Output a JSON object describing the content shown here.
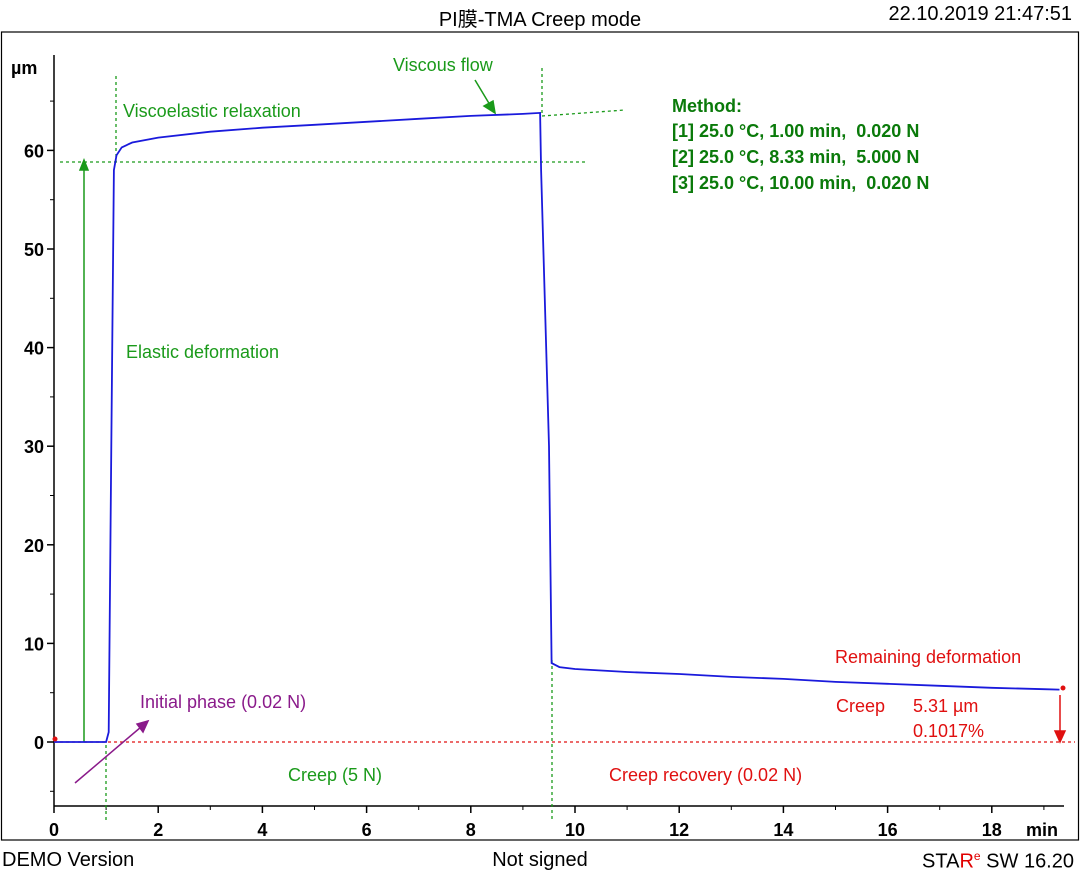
{
  "header": {
    "title": "PI膜-TMA Creep mode",
    "timestamp": "22.10.2019 21:47:51"
  },
  "footer": {
    "demo": "DEMO Version",
    "signed": "Not signed",
    "software_prefix": "STAR",
    "software_sup": "e",
    "software_suffix": " SW 16.20"
  },
  "colors": {
    "curve": "#1a1adc",
    "green": "#1a9a1a",
    "red": "#e01010",
    "purple": "#8a1a8a"
  },
  "chart_data": {
    "type": "line",
    "xlabel": "min",
    "ylabel": "µm",
    "xlim": [
      0,
      19.3
    ],
    "ylim": [
      -6,
      70
    ],
    "x_ticks": [
      0,
      2,
      4,
      6,
      8,
      10,
      12,
      14,
      16,
      18
    ],
    "y_ticks": [
      0,
      10,
      20,
      30,
      40,
      50,
      60
    ],
    "grid": false,
    "series": [
      {
        "x": [
          0,
          0.5,
          1.0,
          1.05,
          1.1,
          1.15,
          1.2,
          1.3,
          1.5,
          2.0,
          3.0,
          4.0,
          5.0,
          6.0,
          7.0,
          8.0,
          9.0,
          9.33,
          9.35,
          9.5,
          9.55,
          9.7,
          10,
          11,
          12,
          13,
          14,
          15,
          16,
          17,
          18,
          19,
          19.3
        ],
        "y": [
          0,
          0,
          0,
          1,
          30,
          58,
          59.5,
          60.3,
          60.8,
          61.3,
          61.9,
          62.3,
          62.6,
          62.9,
          63.2,
          63.5,
          63.7,
          63.8,
          58,
          30,
          8,
          7.6,
          7.4,
          7.1,
          6.9,
          6.6,
          6.4,
          6.1,
          5.9,
          5.7,
          5.5,
          5.35,
          5.31
        ]
      }
    ],
    "annotations": {
      "viscous_flow": "Viscous flow",
      "viscoelastic_relaxation": "Viscoelastic relaxation",
      "elastic_deformation": "Elastic deformation",
      "initial_phase": "Initial phase (0.02 N)",
      "creep_load": "Creep (5 N)",
      "creep_recovery": "Creep recovery (0.02 N)",
      "remaining_deformation": "Remaining deformation",
      "creep_label": "Creep",
      "creep_value": "5.31 µm",
      "creep_percent": "0.1017%"
    },
    "method": {
      "title": "Method:",
      "steps": [
        "[1] 25.0 °C, 1.00 min,  0.020 N",
        "[2] 25.0 °C, 8.33 min,  5.000 N",
        "[3] 25.0 °C, 10.00 min,  0.020 N"
      ]
    }
  }
}
